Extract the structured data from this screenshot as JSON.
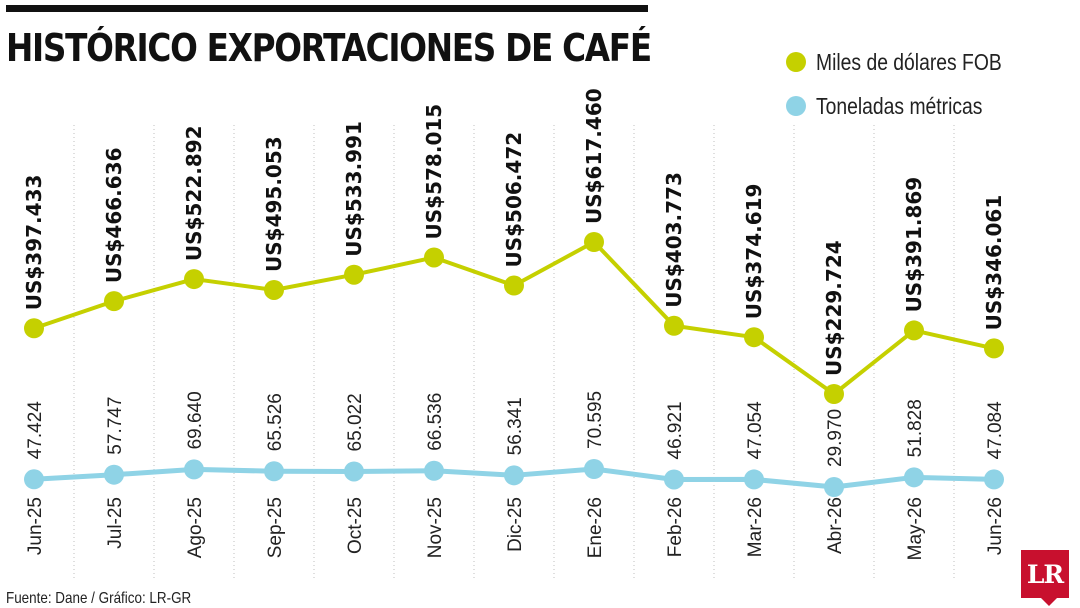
{
  "title": "HISTÓRICO EXPORTACIONES DE CAFÉ",
  "legend": [
    {
      "label": "Miles de dólares FOB",
      "color": "#c5d000"
    },
    {
      "label": "Toneladas métricas",
      "color": "#8fd3e6"
    }
  ],
  "source": "Fuente: Dane / Gráfico: LR-GR",
  "logo": "LR",
  "chart_data": {
    "type": "line",
    "categories": [
      "Jun-25",
      "Jul-25",
      "Ago-25",
      "Sep-25",
      "Oct-25",
      "Nov-25",
      "Dic-25",
      "Ene-26",
      "Feb-26",
      "Mar-26",
      "Abr-26",
      "May-26",
      "Jun-26"
    ],
    "series": [
      {
        "name": "Miles de dólares FOB",
        "color": "#c5d000",
        "values": [
          397433,
          466636,
          522892,
          495053,
          533991,
          578015,
          506472,
          617460,
          403773,
          374619,
          229724,
          391869,
          346061
        ],
        "labels": [
          "US$397.433",
          "US$466.636",
          "US$522.892",
          "US$495.053",
          "US$533.991",
          "US$578.015",
          "US$506.472",
          "US$617.460",
          "US$403.773",
          "US$374.619",
          "US$229.724",
          "US$391.869",
          "US$346.061"
        ]
      },
      {
        "name": "Toneladas métricas",
        "color": "#8fd3e6",
        "values": [
          47424,
          57747,
          69640,
          65526,
          65022,
          66536,
          56341,
          70595,
          46921,
          47054,
          29970,
          51828,
          47084
        ],
        "labels": [
          "47.424",
          "57.747",
          "69.640",
          "65.526",
          "65.022",
          "66.536",
          "56.341",
          "70.595",
          "46.921",
          "47.054",
          "29.970",
          "51.828",
          "47.084"
        ]
      }
    ],
    "grid": "vertical-dotted",
    "legend_position": "top-right"
  }
}
